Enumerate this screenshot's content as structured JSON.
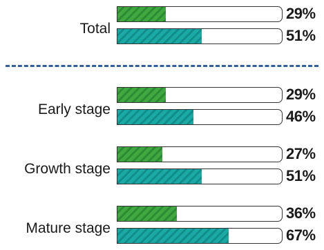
{
  "chart_data": {
    "type": "bar",
    "orientation": "horizontal",
    "categories": [
      "Total",
      "Early stage",
      "Growth stage",
      "Mature stage"
    ],
    "series": [
      {
        "values": [
          29,
          29,
          27,
          36
        ],
        "labels": [
          "29%",
          "29%",
          "27%",
          "36%"
        ]
      },
      {
        "values": [
          51,
          46,
          51,
          67
        ],
        "labels": [
          "51%",
          "46%",
          "51%",
          "67%"
        ]
      }
    ],
    "xlim": [
      0,
      100
    ],
    "unit": "%",
    "grid": false,
    "legend": "none"
  },
  "colors": {
    "series1": "#3fa83f",
    "series1_stripe": "#2e8b35",
    "series2": "#1aaaa6",
    "series2_stripe": "#138d8a",
    "divider": "#2f5f9e"
  }
}
